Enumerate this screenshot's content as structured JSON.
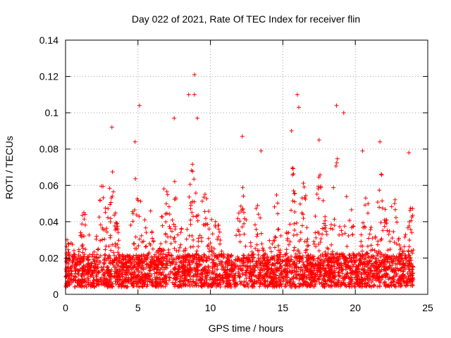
{
  "chart_data": {
    "type": "scatter",
    "title": "Day 022 of 2021, Rate Of TEC Index for receiver flin",
    "xlabel": "GPS time / hours",
    "ylabel": "ROTI / TECUs",
    "xlim": [
      0,
      25
    ],
    "ylim": [
      0,
      0.14
    ],
    "xticks": [
      0,
      5,
      10,
      15,
      20,
      25
    ],
    "xtick_labels": [
      "0",
      "5",
      "10",
      "15",
      "20",
      "25"
    ],
    "yticks": [
      0,
      0.02,
      0.04,
      0.06,
      0.08,
      0.1,
      0.12,
      0.14
    ],
    "ytick_labels": [
      "0",
      "0.02",
      "0.04",
      "0.06",
      "0.08",
      "0.1",
      "0.12",
      "0.14"
    ],
    "grid": true,
    "marker": "+",
    "color": "#ff0000",
    "x_range_of_data": [
      0,
      24
    ],
    "y_range_of_data": [
      0.002,
      0.121
    ],
    "notable_points": [
      {
        "x": 8.9,
        "y": 0.121
      },
      {
        "x": 8.5,
        "y": 0.11
      },
      {
        "x": 8.9,
        "y": 0.11
      },
      {
        "x": 16.0,
        "y": 0.11
      },
      {
        "x": 18.7,
        "y": 0.104
      },
      {
        "x": 5.1,
        "y": 0.104
      },
      {
        "x": 19.2,
        "y": 0.1
      },
      {
        "x": 16.1,
        "y": 0.103
      },
      {
        "x": 3.2,
        "y": 0.092
      },
      {
        "x": 7.5,
        "y": 0.097
      },
      {
        "x": 9.1,
        "y": 0.097
      },
      {
        "x": 4.8,
        "y": 0.084
      },
      {
        "x": 12.2,
        "y": 0.087
      },
      {
        "x": 15.6,
        "y": 0.09
      },
      {
        "x": 17.5,
        "y": 0.085
      },
      {
        "x": 21.7,
        "y": 0.084
      },
      {
        "x": 23.7,
        "y": 0.078
      },
      {
        "x": 13.5,
        "y": 0.079
      },
      {
        "x": 20.5,
        "y": 0.079
      },
      {
        "x": 0.1,
        "y": 0.03
      }
    ]
  }
}
